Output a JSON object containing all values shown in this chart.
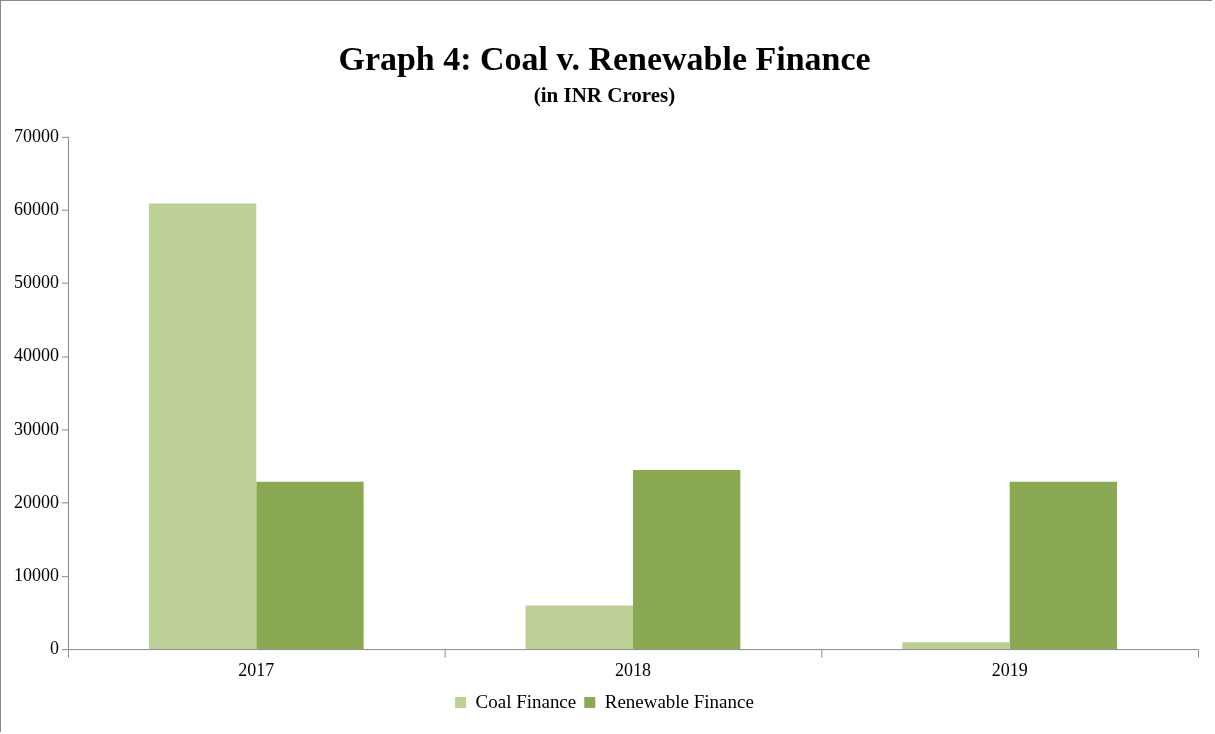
{
  "chart_data": {
    "type": "bar",
    "title": "Graph 4: Coal v. Renewable Finance",
    "subtitle": "(in INR Crores)",
    "categories": [
      "2017",
      "2018",
      "2019"
    ],
    "series": [
      {
        "name": "Coal Finance",
        "color": "#bbcf97",
        "values": [
          60900,
          6000,
          1000
        ]
      },
      {
        "name": "Renewable Finance",
        "color": "#8ba852",
        "values": [
          22900,
          24500,
          22900
        ]
      }
    ],
    "ylim": [
      0,
      70000
    ],
    "yticks": [
      0,
      10000,
      20000,
      30000,
      40000,
      50000,
      60000,
      70000
    ],
    "grid": false,
    "legend": "bottom"
  }
}
